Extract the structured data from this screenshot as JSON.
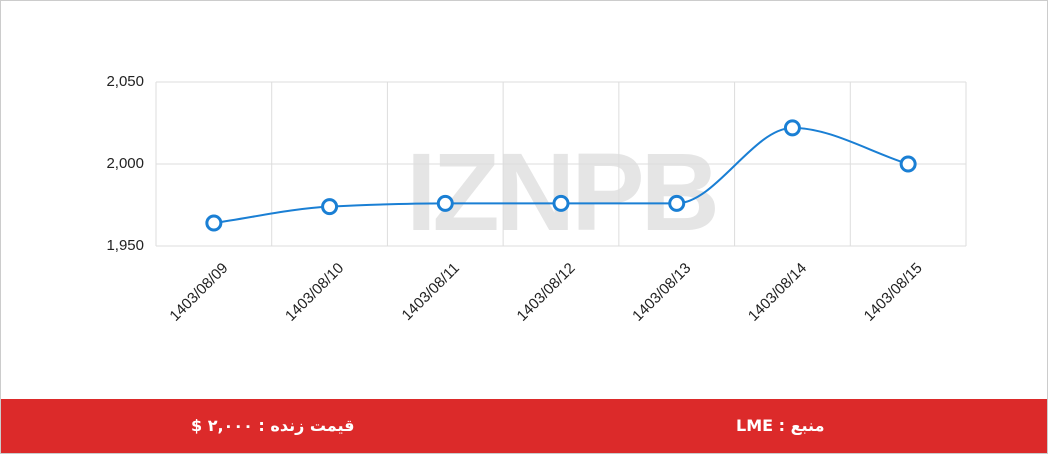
{
  "chart_data": {
    "type": "line",
    "categories": [
      "1403/08/09",
      "1403/08/10",
      "1403/08/11",
      "1403/08/12",
      "1403/08/13",
      "1403/08/14",
      "1403/08/15"
    ],
    "values": [
      1964,
      1974,
      1976,
      1976,
      1976,
      2022,
      2000
    ],
    "color": "#1a7fd4",
    "ylim": [
      1950,
      2050
    ],
    "yticks": [
      {
        "value": 1950,
        "label": "1,950"
      },
      {
        "value": 2000,
        "label": "2,000"
      },
      {
        "value": 2050,
        "label": "2,050"
      }
    ],
    "grid": true,
    "watermark": "IZNPB"
  },
  "footer": {
    "price": "قیمت زنده : ۲,۰۰۰ $",
    "source": "منبع : LME"
  }
}
